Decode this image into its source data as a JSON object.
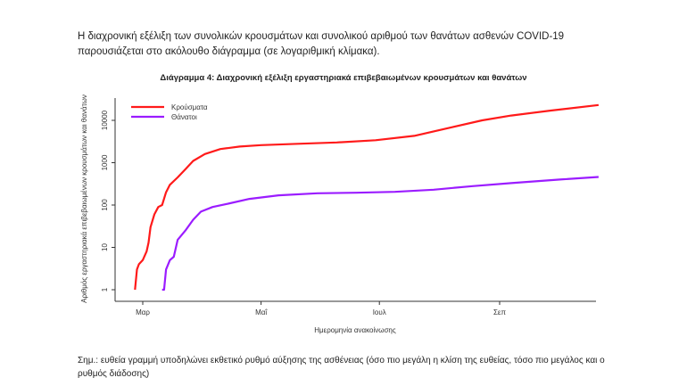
{
  "intro_text": "Η διαχρονική εξέλιξη των συνολικών κρουσμάτων και συνολικού αριθμού των θανάτων ασθενών COVID-19 παρουσιάζεται στο ακόλουθο διάγραμμα (σε λογαριθμική κλίμακα).",
  "note_text": "Σημ.: ευθεία γραμμή υποδηλώνει εκθετικό ρυθμό αύξησης της ασθένειας (όσο πιο μεγάλη η κλίση της ευθείας, τόσο πιο μεγάλος και ο ρυθμός διάδοσης)",
  "chart_data": {
    "type": "line",
    "title": "Διάγραμμα 4: Διαχρονική εξέλιξη εργαστηριακά επιβεβαιωμένων κρουσμάτων και θανάτων",
    "xlabel": "Ημερομηνία ανακοίνωσης",
    "ylabel": "Αριθμός εργαστηριακά επιβεβαιωμένων κρουσμάτων και θανάτων",
    "x_unit": "days since 1 March",
    "xlim": [
      -9,
      239
    ],
    "x_ticks": [
      {
        "label": "Μαρ",
        "value": 0
      },
      {
        "label": "Μαΐ",
        "value": 61
      },
      {
        "label": "Ιουλ",
        "value": 122
      },
      {
        "label": "Σεπ",
        "value": 184
      }
    ],
    "y_scale": "log",
    "ylim": [
      0.7,
      40000
    ],
    "y_ticks": [
      {
        "label": "1",
        "value": 1
      },
      {
        "label": "10",
        "value": 10
      },
      {
        "label": "100",
        "value": 100
      },
      {
        "label": "1000",
        "value": 1000
      },
      {
        "label": "10000",
        "value": 10000
      }
    ],
    "legend_position": "top-left",
    "series": [
      {
        "name": "Κρούσματα",
        "color": "#ff1a1a",
        "x": [
          -4,
          -3,
          -2,
          0,
          2,
          3,
          4,
          6,
          8,
          10,
          12,
          14,
          18,
          22,
          26,
          32,
          40,
          50,
          61,
          80,
          100,
          120,
          140,
          160,
          175,
          190,
          210,
          235
        ],
        "y": [
          1,
          3,
          4,
          5,
          8,
          13,
          30,
          60,
          90,
          100,
          200,
          300,
          450,
          700,
          1100,
          1600,
          2100,
          2400,
          2600,
          2800,
          3000,
          3400,
          4300,
          7000,
          10000,
          13000,
          17000,
          23000
        ]
      },
      {
        "name": "Θάνατοι",
        "color": "#9b1cff",
        "x": [
          10,
          11,
          12,
          14,
          16,
          18,
          22,
          26,
          30,
          36,
          45,
          55,
          70,
          90,
          110,
          130,
          150,
          170,
          190,
          215,
          235
        ],
        "y": [
          1,
          1,
          3,
          5,
          6,
          15,
          25,
          45,
          70,
          90,
          110,
          140,
          170,
          190,
          195,
          205,
          230,
          280,
          330,
          400,
          460
        ]
      }
    ]
  }
}
